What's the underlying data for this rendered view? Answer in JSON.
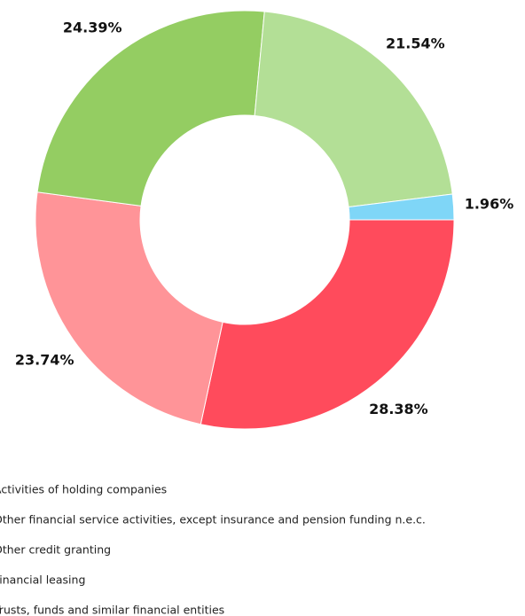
{
  "chart_data": {
    "type": "donut",
    "categories": [
      "Activities of holding companies",
      "Other financial service activities, except insurance and pension funding n.e.c.",
      "Other credit granting",
      "Financial leasing",
      "Trusts, funds and similar financial entities"
    ],
    "values": [
      28.38,
      23.74,
      24.39,
      21.54,
      1.96
    ],
    "value_labels": [
      "28.38%",
      "23.74%",
      "24.39%",
      "21.54%",
      "1.96%"
    ],
    "colors": [
      "#ff4b5c",
      "#ff9498",
      "#94cd62",
      "#b3df96",
      "#7fd6f7"
    ]
  }
}
